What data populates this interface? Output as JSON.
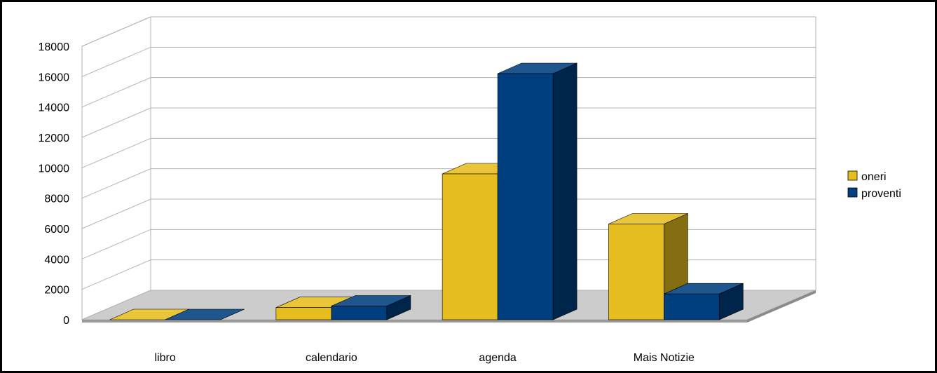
{
  "chart_data": {
    "type": "bar",
    "title": "",
    "xlabel": "",
    "ylabel": "",
    "categories": [
      "libro",
      "calendario",
      "agenda",
      "Mais Notizie"
    ],
    "series": [
      {
        "name": "oneri",
        "values": [
          0,
          800,
          9600,
          6300
        ],
        "color": "#e6bd1f"
      },
      {
        "name": "proventi",
        "values": [
          0,
          900,
          16200,
          1700
        ],
        "color": "#003f7f"
      }
    ],
    "ylim": [
      0,
      18000
    ],
    "yticks": [
      "0",
      "2000",
      "4000",
      "6000",
      "8000",
      "10000",
      "12000",
      "14000",
      "16000",
      "18000"
    ],
    "grid": true,
    "three_d": true,
    "legend_position": "right"
  }
}
